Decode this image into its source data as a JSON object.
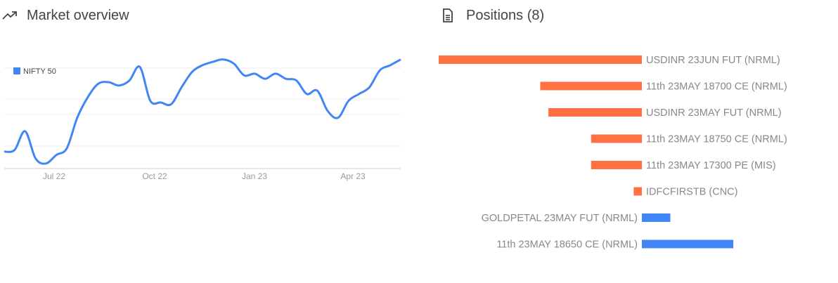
{
  "market": {
    "title": "Market overview",
    "icon": "trending-up-icon",
    "chart_data": {
      "type": "line",
      "legend_position": "top-left",
      "grid": true,
      "series": [
        {
          "name": "NIFTY 50",
          "color": "#4285f4",
          "values": [
            16100,
            16150,
            16700,
            15900,
            15750,
            16000,
            16200,
            17100,
            17700,
            18100,
            18150,
            18050,
            18200,
            18600,
            17600,
            17550,
            17500,
            18000,
            18450,
            18650,
            18750,
            18820,
            18700,
            18350,
            18400,
            18250,
            18400,
            18250,
            18200,
            17800,
            17900,
            17300,
            17100,
            17600,
            17800,
            18000,
            18500,
            18650,
            18820
          ]
        }
      ],
      "x_tick_labels": [
        "Jul 22",
        "Oct 22",
        "Jan 23",
        "Apr 23"
      ],
      "ylim": [
        15600,
        19000
      ]
    }
  },
  "positions": {
    "title": "Positions (8)",
    "icon": "document-icon",
    "chart_data": {
      "type": "bar",
      "orientation": "horizontal",
      "colors": {
        "negative": "#ff7043",
        "positive": "#4285f4"
      },
      "categories": [
        "USDINR 23JUN FUT (NRML)",
        "11th 23MAY 18700 CE (NRML)",
        "USDINR 23MAY FUT (NRML)",
        "11th 23MAY 18750 CE (NRML)",
        "11th 23MAY 17300 PE (MIS)",
        "IDFCFIRSTB (CNC)",
        "GOLDPETAL 23MAY FUT (NRML)",
        "11th 23MAY 18650 CE (NRML)"
      ],
      "values": [
        -100,
        -50,
        -46,
        -25,
        -25,
        -4,
        14,
        45
      ]
    }
  }
}
